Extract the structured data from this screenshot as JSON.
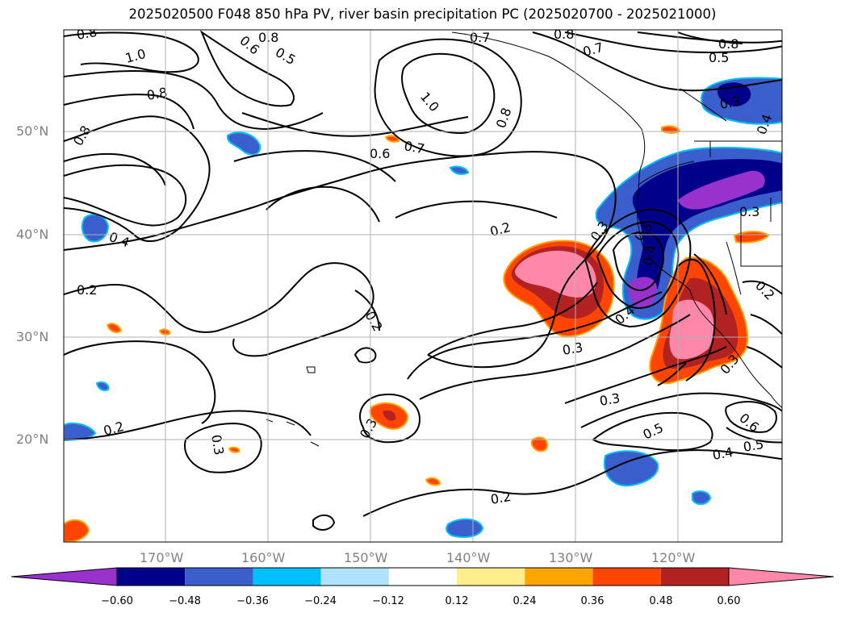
{
  "title": "2025020500 F048 850 hPa PV, river basin precipitation PC (2025020700 - 2025021000)",
  "lat_labels": [
    "50°N",
    "40°N",
    "30°N",
    "20°N"
  ],
  "lon_labels": [
    "170°W",
    "160°W",
    "150°W",
    "140°W",
    "130°W",
    "120°W"
  ],
  "colorbar": {
    "colors": [
      "#9932cc",
      "#00008b",
      "#3a5fcd",
      "#00bfff",
      "#b0e2ff",
      "#ffffff",
      "#ffec8b",
      "#ffa500",
      "#ff4500",
      "#b22222",
      "#ff88aa",
      "#ff88aa"
    ],
    "ticks": [
      "−0.60",
      "−0.48",
      "−0.36",
      "−0.24",
      "−0.12",
      "0.12",
      "0.24",
      "0.36",
      "0.48",
      "0.60"
    ]
  },
  "contour_labels": [
    "0.8",
    "1.0",
    "0.6",
    "0.5",
    "0.8",
    "0.7",
    "0.8",
    "0.7",
    "0.5",
    "0.8",
    "1.0",
    "0.8",
    "0.8",
    "0.8",
    "0.7",
    "0.6",
    "0.4",
    "0.2",
    "0.2",
    "0.2",
    "0.3",
    "0.3",
    "0.3",
    "0.4",
    "0.3",
    "0.2",
    "0.5",
    "0.4",
    "0.3",
    "0.3",
    "0.4",
    "0.3",
    "0.2",
    "0.5",
    "0.2",
    "0.3",
    "0.6",
    "0.5",
    "0.4"
  ]
}
